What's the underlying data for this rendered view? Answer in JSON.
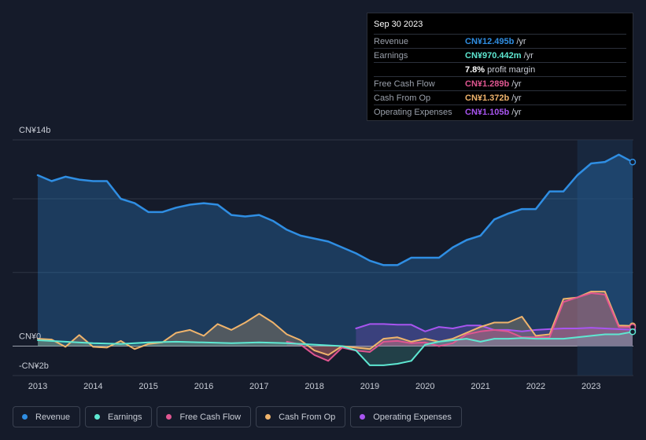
{
  "tooltip": {
    "date": "Sep 30 2023",
    "rows": [
      {
        "label": "Revenue",
        "value": "CN¥12.495b",
        "unit": "/yr",
        "color": "#2f8ee3"
      },
      {
        "label": "Earnings",
        "value": "CN¥970.442m",
        "unit": "/yr",
        "color": "#5ee8d2"
      },
      {
        "label": "",
        "value": "7.8%",
        "unit": "profit margin",
        "color": "#ffffff"
      },
      {
        "label": "Free Cash Flow",
        "value": "CN¥1.289b",
        "unit": "/yr",
        "color": "#e05691"
      },
      {
        "label": "Cash From Op",
        "value": "CN¥1.372b",
        "unit": "/yr",
        "color": "#f0b46c"
      },
      {
        "label": "Operating Expenses",
        "value": "CN¥1.105b",
        "unit": "/yr",
        "color": "#a855f0"
      }
    ]
  },
  "legend": [
    {
      "label": "Revenue",
      "color": "#2f8ee3"
    },
    {
      "label": "Earnings",
      "color": "#5ee8d2"
    },
    {
      "label": "Free Cash Flow",
      "color": "#e05691"
    },
    {
      "label": "Cash From Op",
      "color": "#f0b46c"
    },
    {
      "label": "Operating Expenses",
      "color": "#a855f0"
    }
  ],
  "chart_data": {
    "type": "area",
    "y_tick_labels": [
      "CN¥14b",
      "CN¥0",
      "-CN¥2b"
    ],
    "ylim": [
      -2,
      14
    ],
    "y_unit": "CN¥b",
    "x_tick_labels": [
      "2013",
      "2014",
      "2015",
      "2016",
      "2017",
      "2018",
      "2019",
      "2020",
      "2021",
      "2022",
      "2023"
    ],
    "grid": true,
    "legend_position": "bottom",
    "highlight_region": [
      "2022.75",
      "2023.75"
    ],
    "series": [
      {
        "name": "Revenue",
        "color": "#2f8ee3",
        "points": [
          [
            2013.0,
            11.6
          ],
          [
            2013.25,
            11.2
          ],
          [
            2013.5,
            11.5
          ],
          [
            2013.75,
            11.3
          ],
          [
            2014.0,
            11.2
          ],
          [
            2014.25,
            11.2
          ],
          [
            2014.5,
            10.0
          ],
          [
            2014.75,
            9.7
          ],
          [
            2015.0,
            9.1
          ],
          [
            2015.25,
            9.1
          ],
          [
            2015.5,
            9.4
          ],
          [
            2015.75,
            9.6
          ],
          [
            2016.0,
            9.7
          ],
          [
            2016.25,
            9.6
          ],
          [
            2016.5,
            8.9
          ],
          [
            2016.75,
            8.8
          ],
          [
            2017.0,
            8.9
          ],
          [
            2017.25,
            8.5
          ],
          [
            2017.5,
            7.9
          ],
          [
            2017.75,
            7.5
          ],
          [
            2018.0,
            7.3
          ],
          [
            2018.25,
            7.1
          ],
          [
            2018.5,
            6.7
          ],
          [
            2018.75,
            6.3
          ],
          [
            2019.0,
            5.8
          ],
          [
            2019.25,
            5.5
          ],
          [
            2019.5,
            5.5
          ],
          [
            2019.75,
            6.0
          ],
          [
            2020.0,
            6.0
          ],
          [
            2020.25,
            6.0
          ],
          [
            2020.5,
            6.7
          ],
          [
            2020.75,
            7.2
          ],
          [
            2021.0,
            7.5
          ],
          [
            2021.25,
            8.6
          ],
          [
            2021.5,
            9.0
          ],
          [
            2021.75,
            9.3
          ],
          [
            2022.0,
            9.3
          ],
          [
            2022.25,
            10.5
          ],
          [
            2022.5,
            10.5
          ],
          [
            2022.75,
            11.6
          ],
          [
            2023.0,
            12.4
          ],
          [
            2023.25,
            12.5
          ],
          [
            2023.5,
            13.0
          ],
          [
            2023.75,
            12.495
          ]
        ]
      },
      {
        "name": "Earnings",
        "color": "#5ee8d2",
        "points": [
          [
            2013.0,
            0.4
          ],
          [
            2013.5,
            0.3
          ],
          [
            2014.0,
            0.2
          ],
          [
            2014.5,
            0.15
          ],
          [
            2015.0,
            0.25
          ],
          [
            2015.5,
            0.3
          ],
          [
            2016.0,
            0.25
          ],
          [
            2016.5,
            0.2
          ],
          [
            2017.0,
            0.25
          ],
          [
            2017.5,
            0.2
          ],
          [
            2018.0,
            0.1
          ],
          [
            2018.5,
            0.0
          ],
          [
            2018.75,
            -0.3
          ],
          [
            2019.0,
            -1.3
          ],
          [
            2019.25,
            -1.3
          ],
          [
            2019.5,
            -1.2
          ],
          [
            2019.75,
            -1.0
          ],
          [
            2020.0,
            0.1
          ],
          [
            2020.25,
            0.3
          ],
          [
            2020.5,
            0.4
          ],
          [
            2020.75,
            0.5
          ],
          [
            2021.0,
            0.3
          ],
          [
            2021.25,
            0.5
          ],
          [
            2021.5,
            0.5
          ],
          [
            2021.75,
            0.55
          ],
          [
            2022.0,
            0.5
          ],
          [
            2022.5,
            0.5
          ],
          [
            2022.75,
            0.6
          ],
          [
            2023.0,
            0.7
          ],
          [
            2023.25,
            0.8
          ],
          [
            2023.5,
            0.8
          ],
          [
            2023.75,
            0.970442
          ]
        ]
      },
      {
        "name": "Free Cash Flow",
        "color": "#e05691",
        "points": [
          [
            2017.5,
            0.3
          ],
          [
            2017.75,
            0.1
          ],
          [
            2018.0,
            -0.6
          ],
          [
            2018.25,
            -1.0
          ],
          [
            2018.5,
            -0.1
          ],
          [
            2018.75,
            -0.3
          ],
          [
            2019.0,
            -0.4
          ],
          [
            2019.25,
            0.3
          ],
          [
            2019.5,
            0.35
          ],
          [
            2019.75,
            0.2
          ],
          [
            2020.0,
            0.25
          ],
          [
            2020.25,
            0.0
          ],
          [
            2020.5,
            0.2
          ],
          [
            2020.75,
            0.8
          ],
          [
            2021.0,
            1.0
          ],
          [
            2021.25,
            1.1
          ],
          [
            2021.5,
            1.0
          ],
          [
            2021.75,
            0.6
          ],
          [
            2022.0,
            0.6
          ],
          [
            2022.25,
            0.6
          ],
          [
            2022.5,
            3.0
          ],
          [
            2022.75,
            3.3
          ],
          [
            2023.0,
            3.6
          ],
          [
            2023.25,
            3.5
          ],
          [
            2023.5,
            1.3
          ],
          [
            2023.75,
            1.289
          ]
        ]
      },
      {
        "name": "Cash From Op",
        "color": "#f0b46c",
        "points": [
          [
            2013.0,
            0.5
          ],
          [
            2013.25,
            0.45
          ],
          [
            2013.5,
            -0.05
          ],
          [
            2013.75,
            0.75
          ],
          [
            2014.0,
            -0.05
          ],
          [
            2014.25,
            -0.1
          ],
          [
            2014.5,
            0.35
          ],
          [
            2014.75,
            -0.2
          ],
          [
            2015.0,
            0.15
          ],
          [
            2015.25,
            0.25
          ],
          [
            2015.5,
            0.9
          ],
          [
            2015.75,
            1.1
          ],
          [
            2016.0,
            0.7
          ],
          [
            2016.25,
            1.5
          ],
          [
            2016.5,
            1.1
          ],
          [
            2016.75,
            1.6
          ],
          [
            2017.0,
            2.2
          ],
          [
            2017.25,
            1.6
          ],
          [
            2017.5,
            0.8
          ],
          [
            2017.75,
            0.4
          ],
          [
            2018.0,
            -0.3
          ],
          [
            2018.25,
            -0.6
          ],
          [
            2018.5,
            0.0
          ],
          [
            2018.75,
            -0.1
          ],
          [
            2019.0,
            -0.2
          ],
          [
            2019.25,
            0.5
          ],
          [
            2019.5,
            0.6
          ],
          [
            2019.75,
            0.3
          ],
          [
            2020.0,
            0.5
          ],
          [
            2020.25,
            0.3
          ],
          [
            2020.5,
            0.5
          ],
          [
            2020.75,
            0.9
          ],
          [
            2021.0,
            1.3
          ],
          [
            2021.25,
            1.6
          ],
          [
            2021.5,
            1.6
          ],
          [
            2021.75,
            2.0
          ],
          [
            2022.0,
            0.7
          ],
          [
            2022.25,
            0.8
          ],
          [
            2022.5,
            3.2
          ],
          [
            2022.75,
            3.3
          ],
          [
            2023.0,
            3.7
          ],
          [
            2023.25,
            3.7
          ],
          [
            2023.5,
            1.4
          ],
          [
            2023.75,
            1.372
          ]
        ]
      },
      {
        "name": "Operating Expenses",
        "color": "#a855f0",
        "points": [
          [
            2018.75,
            1.2
          ],
          [
            2019.0,
            1.5
          ],
          [
            2019.25,
            1.5
          ],
          [
            2019.5,
            1.45
          ],
          [
            2019.75,
            1.45
          ],
          [
            2020.0,
            1.0
          ],
          [
            2020.25,
            1.3
          ],
          [
            2020.5,
            1.2
          ],
          [
            2020.75,
            1.4
          ],
          [
            2021.0,
            1.4
          ],
          [
            2021.25,
            1.1
          ],
          [
            2021.5,
            1.1
          ],
          [
            2021.75,
            1.0
          ],
          [
            2022.0,
            1.1
          ],
          [
            2022.25,
            1.15
          ],
          [
            2022.5,
            1.2
          ],
          [
            2022.75,
            1.2
          ],
          [
            2023.0,
            1.25
          ],
          [
            2023.25,
            1.2
          ],
          [
            2023.5,
            1.15
          ],
          [
            2023.75,
            1.105
          ]
        ]
      }
    ]
  }
}
